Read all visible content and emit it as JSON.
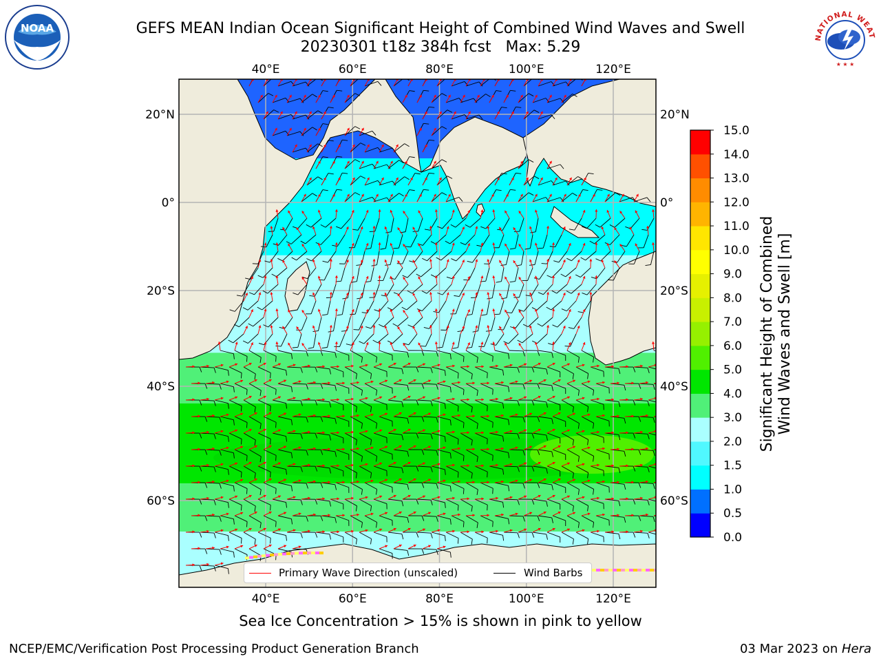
{
  "title": {
    "line1": "GEFS MEAN Indian Ocean Significant Height of Combined Wind Waves and Swell",
    "line2": "20230301 t18z 384h fcst   Max: 5.29"
  },
  "map": {
    "lon_labels": [
      "40°E",
      "60°E",
      "80°E",
      "100°E",
      "120°E"
    ],
    "lat_labels": [
      "20°N",
      "0°",
      "20°S",
      "40°S",
      "60°S"
    ],
    "land_color": "#efecdc",
    "ocean_bands": [
      {
        "from_lat": 28,
        "to_lat": 10,
        "color": "#1e64ff"
      },
      {
        "from_lat": 10,
        "to_lat": -12,
        "color": "#00ffff"
      },
      {
        "from_lat": -12,
        "to_lat": -33,
        "color": "#aaffff"
      },
      {
        "from_lat": -33,
        "to_lat": -43,
        "color": "#50f078"
      },
      {
        "from_lat": -43,
        "to_lat": -57,
        "color": "#00e600"
      },
      {
        "from_lat": -57,
        "to_lat": -65,
        "color": "#50f078"
      },
      {
        "from_lat": -65,
        "to_lat": -72,
        "color": "#aaffff"
      }
    ]
  },
  "colorbar": {
    "title_line1": "Significant Height of Combined",
    "title_line2": "Wind Waves and Swell [m]",
    "ticks": [
      "0.0",
      "0.5",
      "1.0",
      "1.5",
      "2.0",
      "3.0",
      "4.0",
      "5.0",
      "6.0",
      "7.0",
      "8.0",
      "9.0",
      "10.0",
      "11.0",
      "12.0",
      "13.0",
      "14.0",
      "15.0"
    ],
    "colors": [
      "#0000ff",
      "#0070ff",
      "#00ffff",
      "#50f8ff",
      "#aaffff",
      "#50f078",
      "#00e600",
      "#50f000",
      "#96f000",
      "#c8f000",
      "#e6f000",
      "#ffff00",
      "#ffe600",
      "#ffb400",
      "#ff8c00",
      "#ff5000",
      "#ff0000"
    ]
  },
  "legend": {
    "wave_label": "Primary Wave Direction (unscaled)",
    "wave_color": "#ff0000",
    "barb_label": "Wind Barbs",
    "barb_color": "#000000"
  },
  "sea_ice_note": "Sea Ice Concentration > 15% is shown in pink to yellow",
  "footer": {
    "left": "NCEP/EMC/Verification Post Processing Product Generation Branch",
    "right_date": "03 Mar 2023 on ",
    "right_host": "Hera"
  },
  "logos": {
    "noaa_text": "NOAA",
    "nws_text": "NATIONAL WEATHER SERVICE"
  }
}
